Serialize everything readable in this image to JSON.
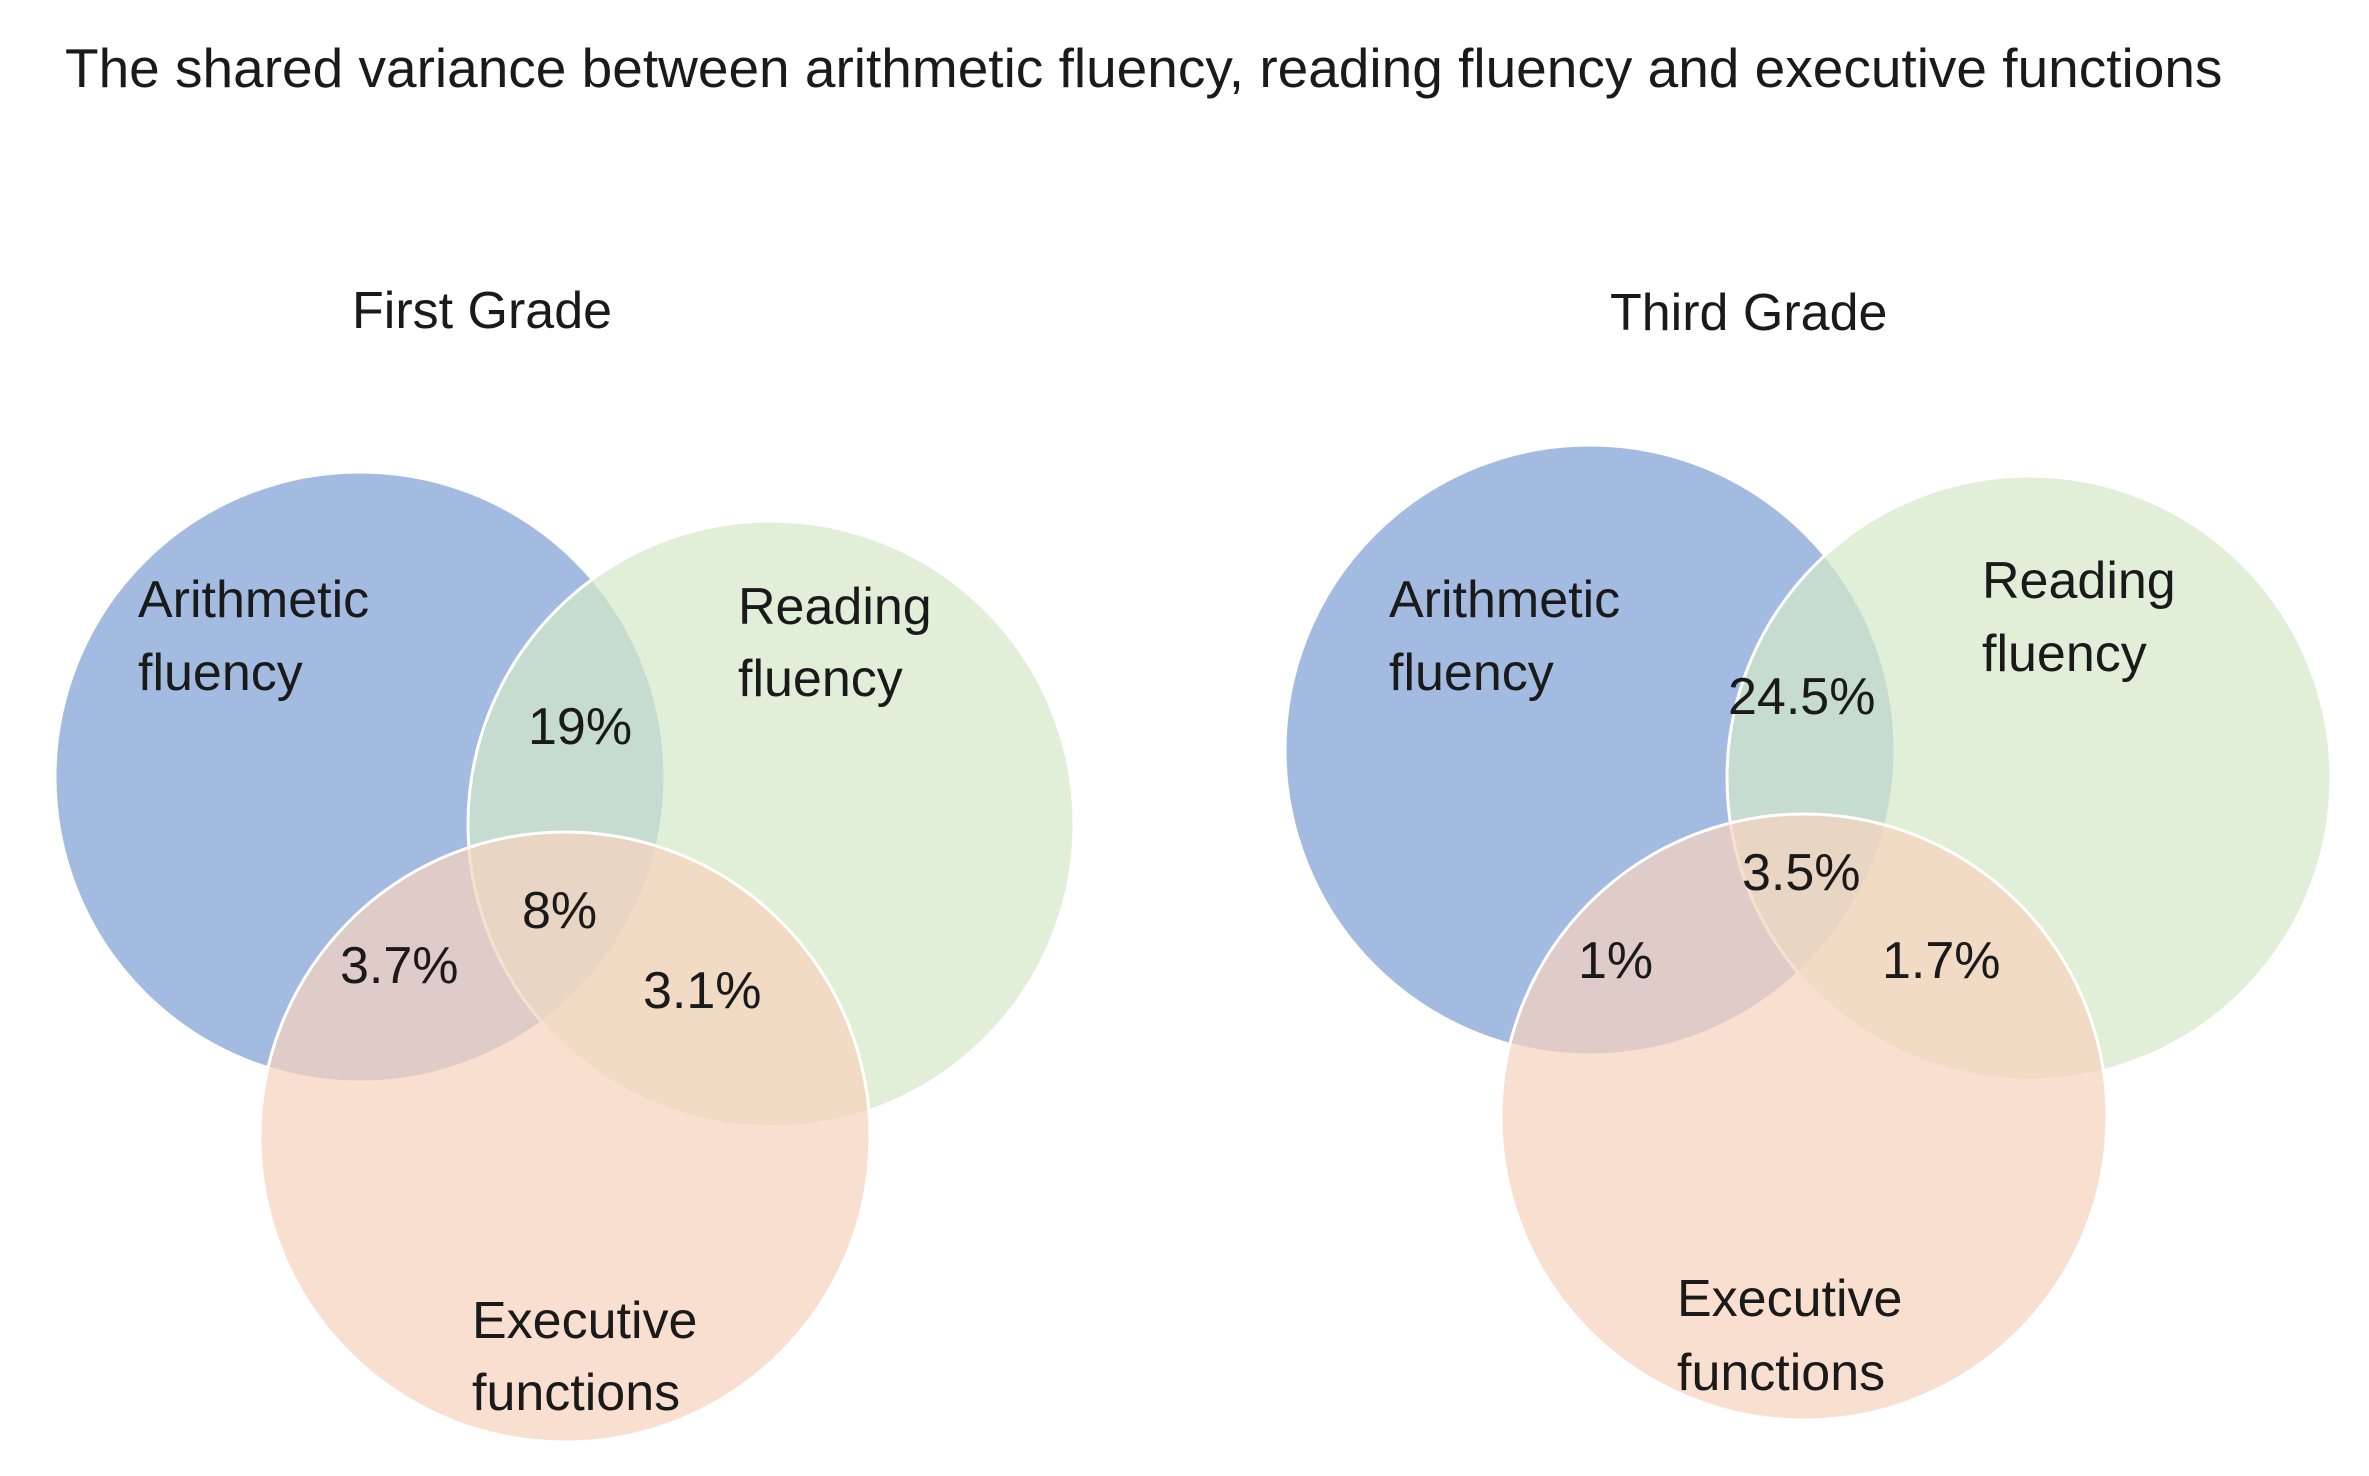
{
  "title": "The shared variance between arithmetic fluency, reading fluency and executive functions",
  "colors": {
    "arithmetic": "#7f9fd5",
    "reading": "#d5e9c9",
    "executive": "#f6d3be",
    "outline": "#ffffff"
  },
  "panels": [
    {
      "title": "First Grade",
      "sets": {
        "arithmetic": [
          "Arithmetic",
          "fluency"
        ],
        "reading": [
          "Reading",
          "fluency"
        ],
        "executive": [
          "Executive",
          "functions"
        ]
      },
      "regions": {
        "arithmetic_reading": "19%",
        "arithmetic_executive": "3.7%",
        "reading_executive": "3.1%",
        "all_three": "8%"
      }
    },
    {
      "title": "Third  Grade",
      "sets": {
        "arithmetic": [
          "Arithmetic",
          "fluency"
        ],
        "reading": [
          "Reading",
          "fluency"
        ],
        "executive": [
          "Executive",
          "functions"
        ]
      },
      "regions": {
        "arithmetic_reading": "24.5%",
        "arithmetic_executive": "1%",
        "reading_executive": "1.7%",
        "all_three": "3.5%"
      }
    }
  ]
}
